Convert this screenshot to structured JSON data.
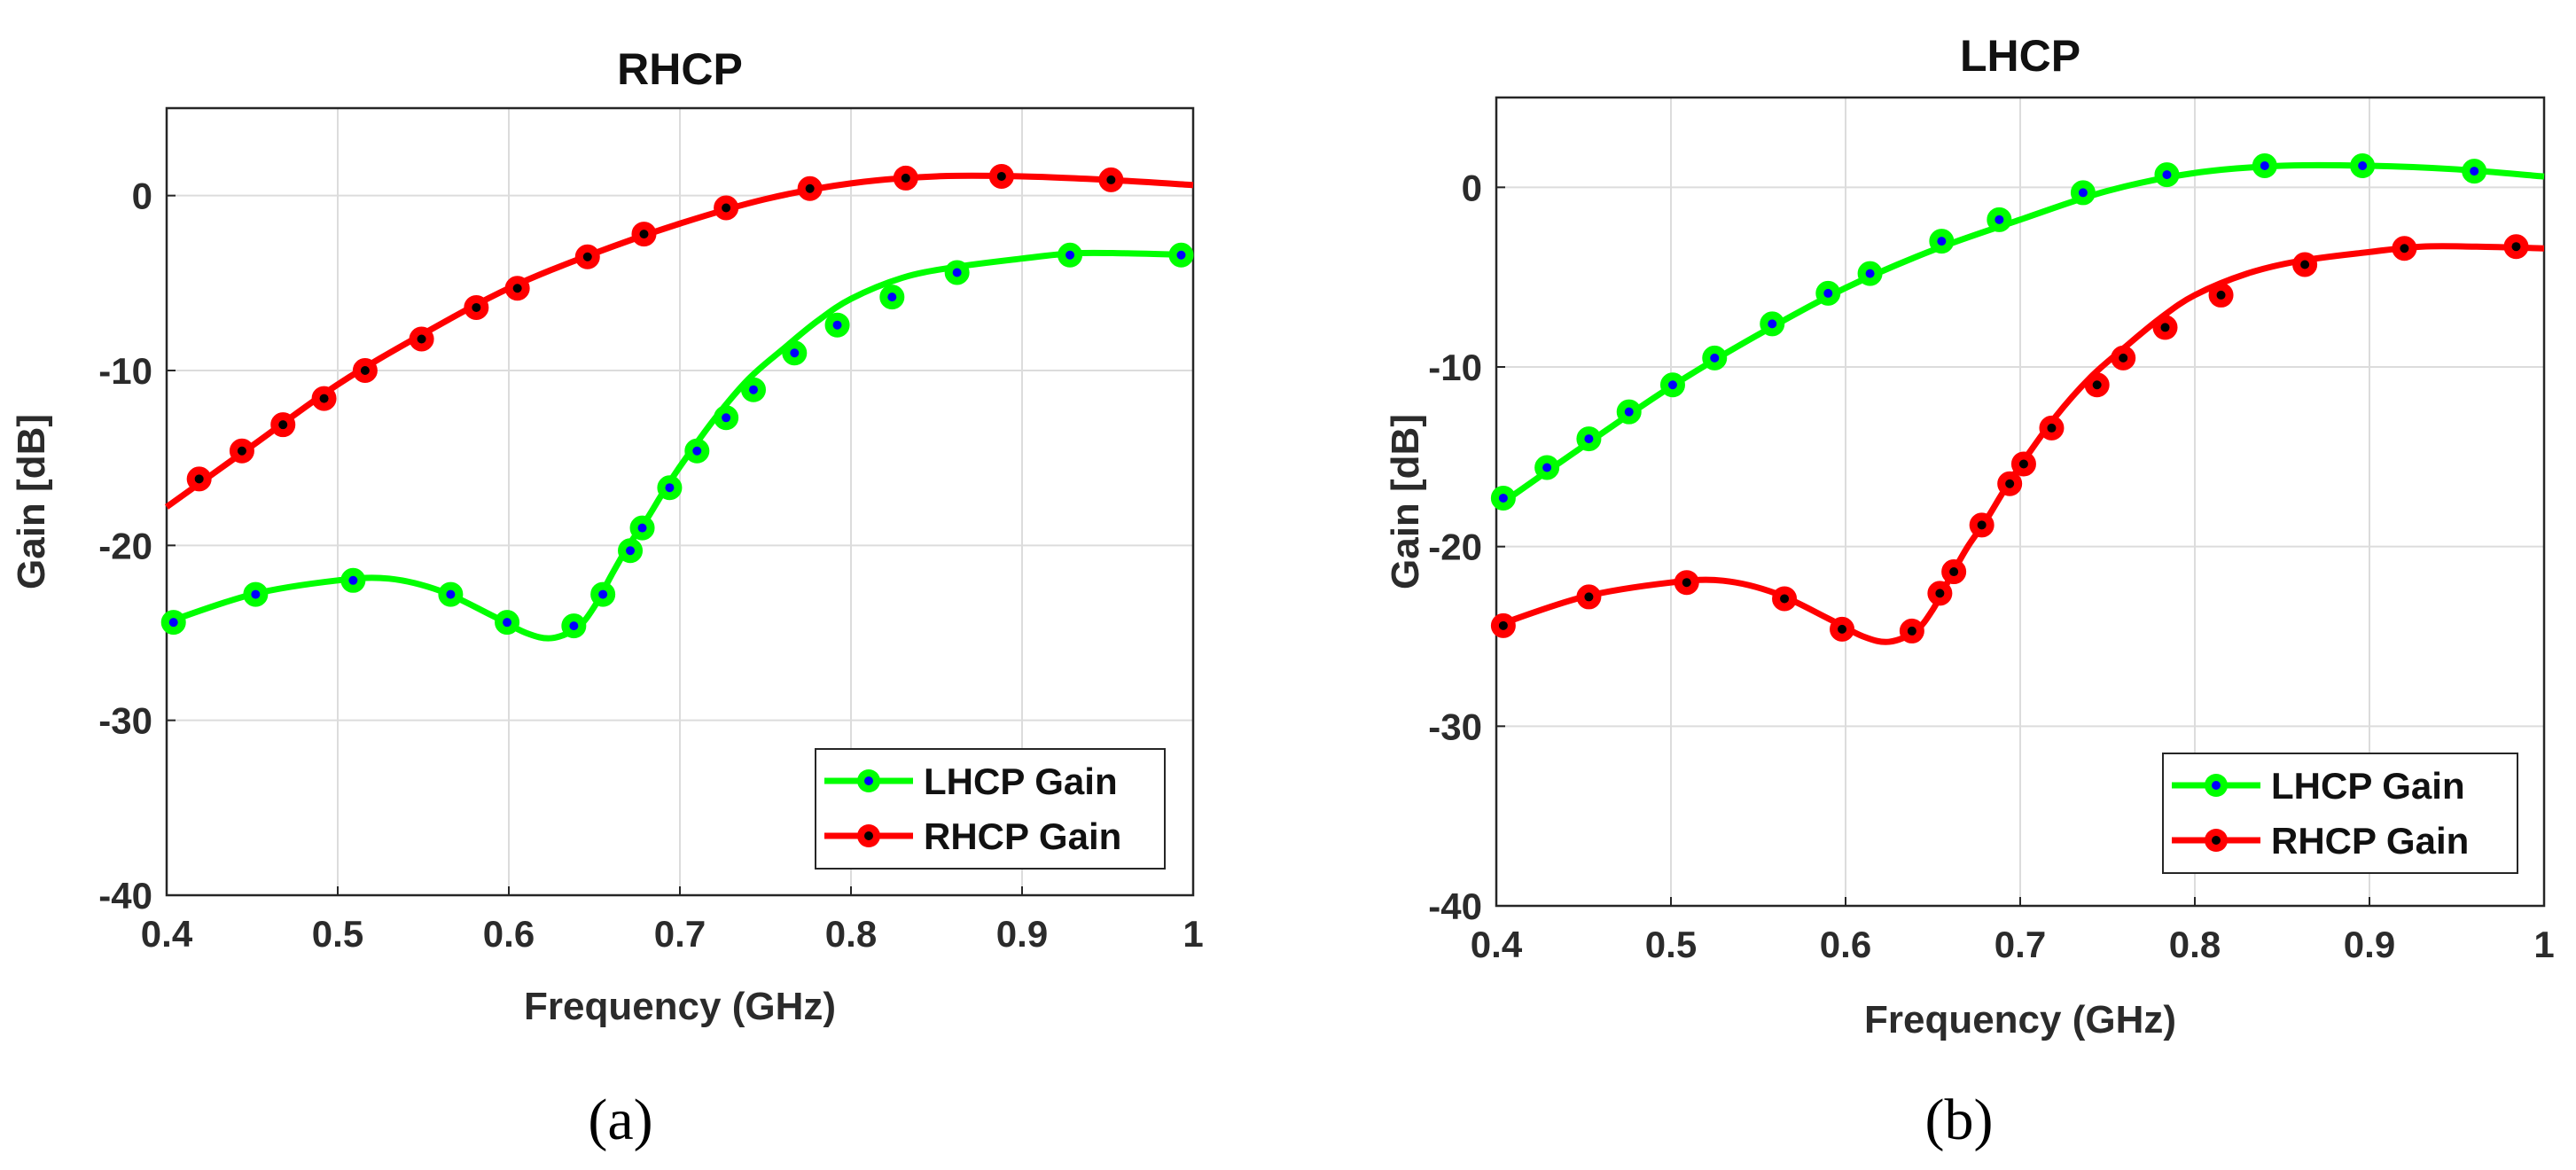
{
  "colors": {
    "lhcp": "#00ff00",
    "rhcp": "#ff0000",
    "lhcp_dot": "#0000ff",
    "rhcp_dot": "#000000"
  },
  "chart_data": [
    {
      "type": "line",
      "title": "RHCP",
      "xlabel": "Frequency (GHz)",
      "ylabel": "Gain [dB]",
      "xlim": [
        0.4,
        1.0
      ],
      "ylim": [
        -40,
        5
      ],
      "xticks": [
        0.4,
        0.5,
        0.6,
        0.7,
        0.8,
        0.9,
        1.0
      ],
      "xtick_labels": [
        "0.4",
        "0.5",
        "0.6",
        "0.7",
        "0.8",
        "0.9",
        "1"
      ],
      "yticks": [
        0,
        -10,
        -20,
        -30,
        -40
      ],
      "ytick_labels": [
        "0",
        "-10",
        "-20",
        "-30",
        "-40"
      ],
      "grid": true,
      "legend": "bottom-right",
      "caption": "(a)",
      "series": [
        {
          "name": "LHCP Gain",
          "color_key": "lhcp",
          "x": [
            0.4,
            0.45,
            0.5,
            0.53,
            0.56,
            0.59,
            0.61,
            0.625,
            0.64,
            0.65,
            0.66,
            0.67,
            0.68,
            0.69,
            0.7,
            0.72,
            0.74,
            0.76,
            0.78,
            0.8,
            0.83,
            0.86,
            0.9,
            0.93,
            0.96,
            1.0
          ],
          "y": [
            -24.4,
            -22.8,
            -22.0,
            -21.9,
            -22.6,
            -24.0,
            -25.0,
            -25.3,
            -24.7,
            -23.5,
            -21.7,
            -20.0,
            -18.6,
            -17.0,
            -15.5,
            -12.8,
            -10.5,
            -8.8,
            -7.2,
            -5.9,
            -4.7,
            -4.1,
            -3.6,
            -3.3,
            -3.3,
            -3.4
          ],
          "markers": {
            "x": [
              0.404,
              0.452,
              0.509,
              0.566,
              0.599,
              0.638,
              0.655,
              0.671,
              0.678,
              0.694,
              0.71,
              0.727,
              0.743,
              0.767,
              0.792,
              0.824,
              0.862,
              0.928,
              0.993
            ],
            "y": [
              -24.4,
              -22.8,
              -22.0,
              -22.8,
              -24.4,
              -24.6,
              -22.8,
              -20.3,
              -19.0,
              -16.7,
              -14.6,
              -12.7,
              -11.1,
              -9.0,
              -7.4,
              -5.8,
              -4.4,
              -3.4,
              -3.4
            ]
          }
        },
        {
          "name": "RHCP Gain",
          "color_key": "rhcp",
          "x": [
            0.4,
            0.45,
            0.5,
            0.55,
            0.6,
            0.65,
            0.7,
            0.75,
            0.8,
            0.85,
            0.9,
            0.95,
            1.0
          ],
          "y": [
            -17.8,
            -14.3,
            -10.8,
            -7.9,
            -5.3,
            -3.3,
            -1.6,
            -0.2,
            0.7,
            1.1,
            1.1,
            0.9,
            0.6
          ],
          "markers": {
            "x": [
              0.419,
              0.444,
              0.468,
              0.492,
              0.516,
              0.549,
              0.581,
              0.605,
              0.646,
              0.679,
              0.727,
              0.776,
              0.832,
              0.888,
              0.952
            ],
            "y": [
              -16.2,
              -14.6,
              -13.1,
              -11.6,
              -10.0,
              -8.2,
              -6.4,
              -5.3,
              -3.5,
              -2.2,
              -0.7,
              0.4,
              1.0,
              1.1,
              0.9
            ]
          }
        }
      ]
    },
    {
      "type": "line",
      "title": "LHCP",
      "xlabel": "Frequency (GHz)",
      "ylabel": "Gain [dB]",
      "xlim": [
        0.4,
        1.0
      ],
      "ylim": [
        -40,
        5
      ],
      "xticks": [
        0.4,
        0.5,
        0.6,
        0.7,
        0.8,
        0.9,
        1.0
      ],
      "xtick_labels": [
        "0.4",
        "0.5",
        "0.6",
        "0.7",
        "0.8",
        "0.9",
        "1"
      ],
      "yticks": [
        0,
        -10,
        -20,
        -30,
        -40
      ],
      "ytick_labels": [
        "0",
        "-10",
        "-20",
        "-30",
        "-40"
      ],
      "grid": true,
      "legend": "bottom-right",
      "caption": "(b)",
      "series": [
        {
          "name": "LHCP Gain",
          "color_key": "lhcp",
          "x": [
            0.4,
            0.45,
            0.5,
            0.55,
            0.6,
            0.65,
            0.7,
            0.75,
            0.8,
            0.85,
            0.9,
            0.95,
            1.0
          ],
          "y": [
            -17.8,
            -14.4,
            -11.1,
            -8.2,
            -5.6,
            -3.5,
            -1.8,
            -0.2,
            0.8,
            1.2,
            1.2,
            1.0,
            0.6
          ],
          "markers": {
            "x": [
              0.404,
              0.429,
              0.453,
              0.476,
              0.501,
              0.525,
              0.558,
              0.59,
              0.614,
              0.655,
              0.688,
              0.736,
              0.784,
              0.84,
              0.896,
              0.96
            ],
            "y": [
              -17.3,
              -15.6,
              -14.0,
              -12.5,
              -11.0,
              -9.5,
              -7.6,
              -5.9,
              -4.8,
              -3.0,
              -1.8,
              -0.3,
              0.7,
              1.2,
              1.2,
              0.9
            ]
          }
        },
        {
          "name": "RHCP Gain",
          "color_key": "rhcp",
          "x": [
            0.4,
            0.45,
            0.5,
            0.53,
            0.56,
            0.59,
            0.61,
            0.625,
            0.64,
            0.65,
            0.66,
            0.67,
            0.68,
            0.69,
            0.7,
            0.72,
            0.74,
            0.76,
            0.78,
            0.8,
            0.83,
            0.86,
            0.9,
            0.93,
            0.96,
            1.0
          ],
          "y": [
            -24.4,
            -22.8,
            -22.0,
            -21.9,
            -22.6,
            -24.0,
            -25.0,
            -25.3,
            -24.7,
            -23.5,
            -21.7,
            -20.0,
            -18.6,
            -17.0,
            -15.5,
            -12.8,
            -10.6,
            -8.9,
            -7.3,
            -6.0,
            -4.8,
            -4.1,
            -3.6,
            -3.3,
            -3.3,
            -3.4
          ],
          "markers": {
            "x": [
              0.404,
              0.453,
              0.509,
              0.565,
              0.598,
              0.638,
              0.654,
              0.662,
              0.678,
              0.694,
              0.702,
              0.718,
              0.744,
              0.759,
              0.783,
              0.815,
              0.863,
              0.92,
              0.984
            ],
            "y": [
              -24.4,
              -22.8,
              -22.0,
              -22.9,
              -24.6,
              -24.7,
              -22.6,
              -21.4,
              -18.8,
              -16.5,
              -15.4,
              -13.4,
              -11.0,
              -9.5,
              -7.8,
              -6.0,
              -4.3,
              -3.4,
              -3.3
            ]
          }
        }
      ]
    }
  ]
}
